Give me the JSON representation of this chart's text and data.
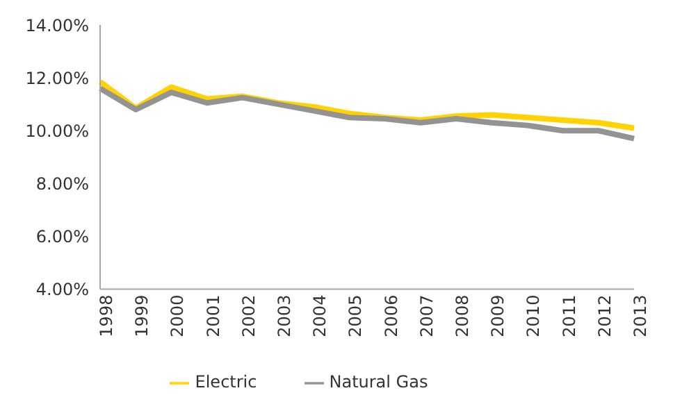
{
  "chart_data": {
    "type": "line",
    "categories": [
      "1998",
      "1999",
      "2000",
      "2001",
      "2002",
      "2003",
      "2004",
      "2005",
      "2006",
      "2007",
      "2008",
      "2009",
      "2010",
      "2011",
      "2012",
      "2013"
    ],
    "series": [
      {
        "name": "Electric",
        "color": "#ffd200",
        "values": [
          11.85,
          10.85,
          11.65,
          11.2,
          11.3,
          11.05,
          10.9,
          10.65,
          10.5,
          10.4,
          10.55,
          10.6,
          10.5,
          10.4,
          10.3,
          10.1
        ]
      },
      {
        "name": "Natural Gas",
        "color": "#939393",
        "values": [
          11.6,
          10.8,
          11.45,
          11.05,
          11.25,
          11.0,
          10.75,
          10.5,
          10.45,
          10.3,
          10.45,
          10.3,
          10.2,
          10.0,
          10.0,
          9.7
        ]
      }
    ],
    "ylim": [
      4,
      14
    ],
    "yticks": [
      {
        "value": 4,
        "label": "4.00%"
      },
      {
        "value": 6,
        "label": "6.00%"
      },
      {
        "value": 8,
        "label": "8.00%"
      },
      {
        "value": 10,
        "label": "10.00%"
      },
      {
        "value": 12,
        "label": "12.00%"
      },
      {
        "value": 14,
        "label": "14.00%"
      }
    ],
    "grid": false,
    "legend": "bottom",
    "marker": "none",
    "line_style": "solid"
  }
}
